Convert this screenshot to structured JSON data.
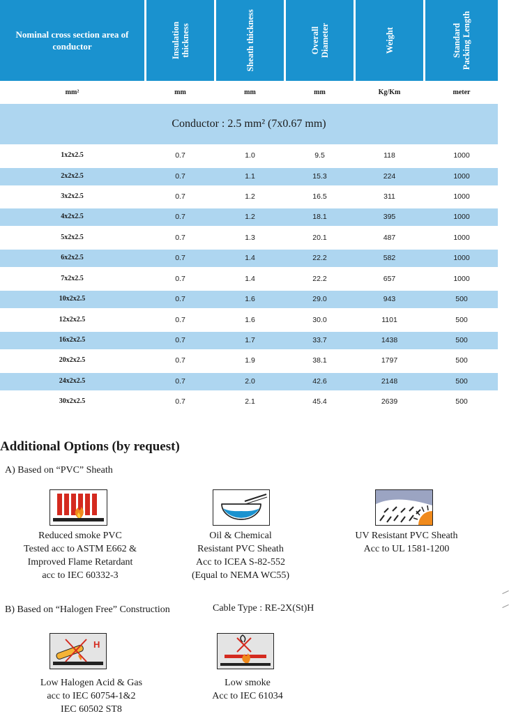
{
  "header": {
    "col0": "Nominal cross section area of conductor",
    "col1_line1": "Insulation",
    "col1_line2": "thickness",
    "col2": "Sheath thickness",
    "col3_line1": "Overall",
    "col3_line2": "Diameter",
    "col4": "Weight",
    "col5_line1": "Standard",
    "col5_line2": "Packing Length"
  },
  "units": [
    "mm²",
    "mm",
    "mm",
    "mm",
    "Kg/Km",
    "meter"
  ],
  "conductor_band": "Conductor : 2.5 mm² (7x0.67 mm)",
  "rows": [
    [
      "1x2x2.5",
      "0.7",
      "1.0",
      "9.5",
      "118",
      "1000"
    ],
    [
      "2x2x2.5",
      "0.7",
      "1.1",
      "15.3",
      "224",
      "1000"
    ],
    [
      "3x2x2.5",
      "0.7",
      "1.2",
      "16.5",
      "311",
      "1000"
    ],
    [
      "4x2x2.5",
      "0.7",
      "1.2",
      "18.1",
      "395",
      "1000"
    ],
    [
      "5x2x2.5",
      "0.7",
      "1.3",
      "20.1",
      "487",
      "1000"
    ],
    [
      "6x2x2.5",
      "0.7",
      "1.4",
      "22.2",
      "582",
      "1000"
    ],
    [
      "7x2x2.5",
      "0.7",
      "1.4",
      "22.2",
      "657",
      "1000"
    ],
    [
      "10x2x2.5",
      "0.7",
      "1.6",
      "29.0",
      "943",
      "500"
    ],
    [
      "12x2x2.5",
      "0.7",
      "1.6",
      "30.0",
      "1101",
      "500"
    ],
    [
      "16x2x2.5",
      "0.7",
      "1.7",
      "33.7",
      "1438",
      "500"
    ],
    [
      "20x2x2.5",
      "0.7",
      "1.9",
      "38.1",
      "1797",
      "500"
    ],
    [
      "24x2x2.5",
      "0.7",
      "2.0",
      "42.6",
      "2148",
      "500"
    ],
    [
      "30x2x2.5",
      "0.7",
      "2.1",
      "45.4",
      "2639",
      "500"
    ]
  ],
  "options": {
    "title": "Additional Options (by request)",
    "pvc_heading": "A) Based on “PVC” Sheath",
    "pvc_items": [
      {
        "icon": "flame-retardant-icon",
        "lines": [
          "Reduced smoke PVC",
          "Tested acc to ASTM E662 &",
          "Improved Flame Retardant",
          "acc to IEC 60332-3"
        ]
      },
      {
        "icon": "oil-chemical-icon",
        "lines": [
          "Oil & Chemical",
          "Resistant PVC Sheath",
          "Acc to ICEA S-82-552",
          "(Equal to NEMA WC55)"
        ]
      },
      {
        "icon": "uv-resistant-icon",
        "lines": [
          "UV Resistant PVC Sheath",
          "Acc to UL 1581-1200"
        ]
      }
    ],
    "hf_heading": "B) Based on “Halogen Free” Construction",
    "cable_type": "Cable Type : RE-2X(St)H",
    "hf_items": [
      {
        "icon": "low-halogen-icon",
        "lines": [
          "Low Halogen Acid & Gas",
          "acc to IEC 60754-1&2",
          "IEC 60502 ST8"
        ]
      },
      {
        "icon": "low-smoke-icon",
        "lines": [
          "Low smoke",
          "Acc to IEC 61034"
        ]
      }
    ]
  },
  "colors": {
    "header": "#1a92cf",
    "stripe": "#aed6f0",
    "accent_red": "#d42a1f",
    "accent_orange": "#f08a1c"
  }
}
